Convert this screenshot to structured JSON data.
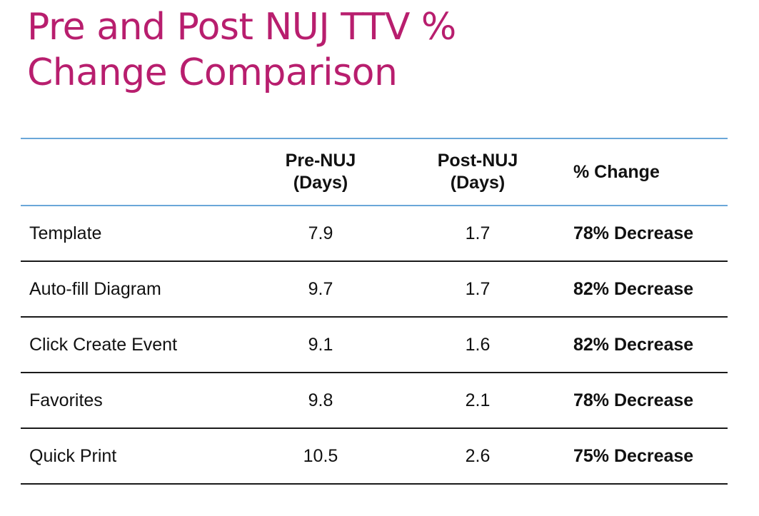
{
  "title": {
    "line1": "Pre and Post NUJ TTV %",
    "line2": "Change Comparison"
  },
  "table": {
    "headers": {
      "blank": "",
      "pre": {
        "line1": "Pre-NUJ",
        "line2": "(Days)"
      },
      "post": {
        "line1": "Post-NUJ",
        "line2": "(Days)"
      },
      "change": "% Change"
    },
    "rows": [
      {
        "name": "Template",
        "pre": "7.9",
        "post": "1.7",
        "change": "78% Decrease"
      },
      {
        "name": "Auto-fill Diagram",
        "pre": "9.7",
        "post": "1.7",
        "change": "82% Decrease"
      },
      {
        "name": "Click Create Event",
        "pre": "9.1",
        "post": "1.6",
        "change": "82% Decrease"
      },
      {
        "name": "Favorites",
        "pre": "9.8",
        "post": "2.1",
        "change": "78% Decrease"
      },
      {
        "name": "Quick Print",
        "pre": "10.5",
        "post": "2.6",
        "change": "75% Decrease"
      }
    ]
  },
  "colors": {
    "title": "#b81e6e",
    "header_rule": "#6aa7d9",
    "row_rule": "#1a1a1a"
  }
}
